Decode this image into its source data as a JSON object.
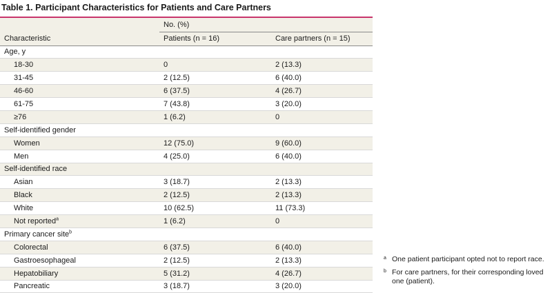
{
  "title": "Table 1. Participant Characteristics for Patients and Care Partners",
  "header": {
    "characteristic": "Characteristic",
    "group": "No. (%)",
    "patients": "Patients (n = 16)",
    "care_partners": "Care partners (n = 15)"
  },
  "rows": [
    {
      "label": "Age, y",
      "section": true
    },
    {
      "label": "18-30",
      "patients": "0",
      "care": "2 (13.3)"
    },
    {
      "label": "31-45",
      "patients": "2 (12.5)",
      "care": "6 (40.0)"
    },
    {
      "label": "46-60",
      "patients": "6 (37.5)",
      "care": "4 (26.7)"
    },
    {
      "label": "61-75",
      "patients": "7 (43.8)",
      "care": "3 (20.0)"
    },
    {
      "label": "≥76",
      "patients": "1 (6.2)",
      "care": "0"
    },
    {
      "label": "Self-identified gender",
      "section": true
    },
    {
      "label": "Women",
      "patients": "12 (75.0)",
      "care": "9 (60.0)"
    },
    {
      "label": "Men",
      "patients": "4 (25.0)",
      "care": "6 (40.0)"
    },
    {
      "label": "Self-identified race",
      "section": true
    },
    {
      "label": "Asian",
      "patients": "3 (18.7)",
      "care": "2 (13.3)"
    },
    {
      "label": "Black",
      "patients": "2 (12.5)",
      "care": "2 (13.3)"
    },
    {
      "label": "White",
      "patients": "10 (62.5)",
      "care": "11 (73.3)"
    },
    {
      "label": "Not reported",
      "sup": "a",
      "patients": "1 (6.2)",
      "care": "0"
    },
    {
      "label": "Primary cancer site",
      "sup": "b",
      "section": true
    },
    {
      "label": "Colorectal",
      "patients": "6 (37.5)",
      "care": "6 (40.0)"
    },
    {
      "label": "Gastroesophageal",
      "patients": "2 (12.5)",
      "care": "2 (13.3)"
    },
    {
      "label": "Hepatobiliary",
      "patients": "5 (31.2)",
      "care": "4 (26.7)"
    },
    {
      "label": "Pancreatic",
      "patients": "3 (18.7)",
      "care": "3 (20.0)"
    }
  ],
  "footnotes": [
    {
      "mark": "a",
      "text": "One patient participant opted not to report race."
    },
    {
      "mark": "b",
      "text": "For care partners, for their corresponding loved one (patient)."
    }
  ],
  "colors": {
    "accent": "#c8346b",
    "shade": "#f2f0e7"
  }
}
